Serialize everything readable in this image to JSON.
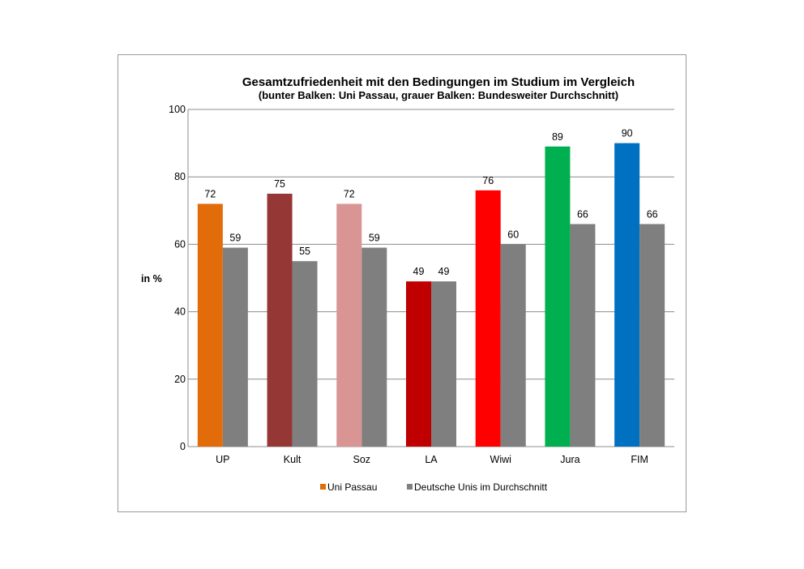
{
  "chart_data": {
    "type": "bar",
    "title": "Gesamtzufriedenheit mit den Bedingungen im Studium im Vergleich",
    "subtitle": "(bunter Balken: Uni Passau, grauer Balken: Bundesweiter Durchschnitt)",
    "xlabel": "",
    "ylabel": "in %",
    "ylim": [
      0,
      100
    ],
    "yticks": [
      "0",
      "20",
      "40",
      "60",
      "80",
      "100"
    ],
    "grid": true,
    "categories": [
      "UP",
      "Kult",
      "Soz",
      "LA",
      "Wiwi",
      "Jura",
      "FIM"
    ],
    "category_colors": [
      "#E36C0A",
      "#953735",
      "#D99594",
      "#C00000",
      "#FF0000",
      "#00B050",
      "#0070C0"
    ],
    "series": [
      {
        "name": "Uni Passau",
        "values": [
          72,
          75,
          72,
          49,
          76,
          89,
          90
        ],
        "color": "#E36C0A"
      },
      {
        "name": "Deutsche Unis im Durchschnitt",
        "values": [
          59,
          55,
          59,
          49,
          60,
          66,
          66
        ],
        "color": "#7F7F7F"
      }
    ],
    "legend_position": "bottom"
  }
}
